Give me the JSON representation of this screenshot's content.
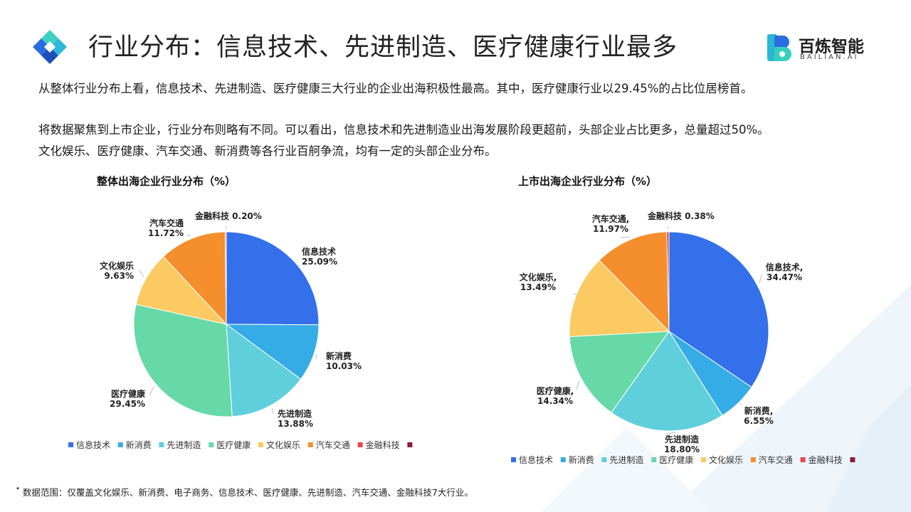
{
  "page": {
    "title": "行业分布：信息技术、先进制造、医疗健康行业最多",
    "brand": {
      "name": "百炼智能",
      "sub": "BAILIAN.AI"
    },
    "paragraphs": [
      "从整体行业分布上看，信息技术、先进制造、医疗健康三大行业的企业出海积极性最高。其中，医疗健康行业以29.45%的占比位居榜首。",
      "将数据聚焦到上市企业，行业分布则略有不同。可以看出，信息技术和先进制造业出海发展阶段更超前，头部企业占比更多，总量超过50%。",
      "文化娱乐、医疗健康、汽车交通、新消费等各行业百舸争流，均有一定的头部企业分布。"
    ],
    "footnote": "数据范围：仅覆盖文化娱乐、新消费、电子商务、信息技术、医疗健康、先进制造、汽车交通、金融科技7大行业。",
    "footnote_marker": "•",
    "colors": {
      "accent_blue": "#2f6fec",
      "accent_teal": "#33c5b0"
    }
  },
  "chart_data": [
    {
      "type": "pie",
      "title": "整体出海企业行业分布（%）",
      "categories": [
        "信息技术",
        "新消费",
        "先进制造",
        "医疗健康",
        "文化娱乐",
        "汽车交通",
        "金融科技"
      ],
      "values": [
        25.09,
        10.03,
        13.88,
        29.45,
        9.63,
        11.72,
        0.2
      ],
      "value_labels": [
        "25.09%",
        "10.03%",
        "13.88%",
        "29.45%",
        "9.63%",
        "11.72%",
        "0.20%"
      ],
      "label_names": [
        "信息技术",
        "新消费",
        "先进制造",
        "医疗健康",
        "文化娱乐",
        "汽车交通",
        "金融科技"
      ],
      "colors": [
        "#3370ea",
        "#36ace6",
        "#5fcfdc",
        "#67d9a8",
        "#fcca62",
        "#f58e2c",
        "#e8464c"
      ],
      "legend": [
        "信息技术",
        "新消费",
        "先进制造",
        "医疗健康",
        "文化娱乐",
        "汽车交通",
        "金融科技",
        ""
      ],
      "legend_colors": [
        "#3370ea",
        "#36ace6",
        "#5fcfdc",
        "#67d9a8",
        "#fcca62",
        "#f58e2c",
        "#e8464c",
        "#8d1c3c"
      ],
      "legend_position": "bottom"
    },
    {
      "type": "pie",
      "title": "上市出海企业行业分布（%）",
      "categories": [
        "信息技术",
        "新消费",
        "先进制造",
        "医疗健康",
        "文化娱乐",
        "汽车交通",
        "金融科技"
      ],
      "values": [
        34.47,
        6.55,
        18.8,
        14.34,
        13.49,
        11.97,
        0.38
      ],
      "value_labels": [
        "34.47%",
        "6.55%",
        "18.80%",
        "14.34%",
        "13.49%",
        "11.97%",
        "0.38%"
      ],
      "label_names": [
        "信息技术,",
        "新消费,",
        "先进制造",
        "医疗健康,",
        "文化娱乐,",
        "汽车交通,",
        "金融科技"
      ],
      "colors": [
        "#3370ea",
        "#36ace6",
        "#5fcfdc",
        "#67d9a8",
        "#fcca62",
        "#f58e2c",
        "#e8464c"
      ],
      "legend": [
        "信息技术",
        "新消费",
        "先进制造",
        "医疗健康",
        "文化娱乐",
        "汽车交通",
        "金融科技",
        ""
      ],
      "legend_colors": [
        "#3370ea",
        "#36ace6",
        "#5fcfdc",
        "#67d9a8",
        "#fcca62",
        "#f58e2c",
        "#e8464c",
        "#8d1c3c"
      ],
      "legend_position": "bottom"
    }
  ]
}
